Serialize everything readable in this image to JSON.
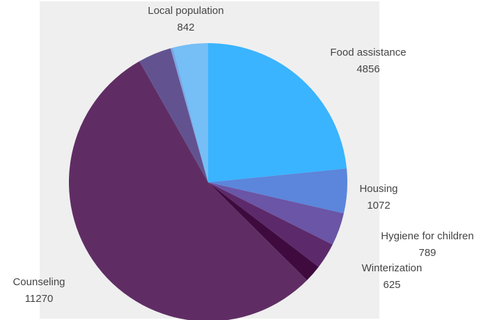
{
  "chart_data": {
    "type": "pie",
    "title": "",
    "slices": [
      {
        "label": "Food assistance",
        "value": 4856,
        "color": "#3ab4ff",
        "label_text": "Food assistance",
        "value_text": "4856"
      },
      {
        "label": "Housing",
        "value": 1072,
        "color": "#5b86dc",
        "label_text": "Housing",
        "value_text": "1072"
      },
      {
        "label": "Hygiene for children",
        "value": 789,
        "color": "#6a55a6",
        "label_text": "Hygiene for children",
        "value_text": "789"
      },
      {
        "label": "Winterization",
        "value": 625,
        "color": "#5c2a6a",
        "label_text": "Winterization",
        "value_text": "625"
      },
      {
        "label": "",
        "value": 420,
        "color": "#3f0b3e",
        "label_text": "",
        "value_text": ""
      },
      {
        "label": "Counseling",
        "value": 11270,
        "color": "#5f2d64",
        "label_text": "Counseling",
        "value_text": "11270"
      },
      {
        "label": "",
        "value": 800,
        "color": "#625390",
        "label_text": "",
        "value_text": ""
      },
      {
        "label": "",
        "value": 60,
        "color": "#7aa6e4",
        "label_text": "",
        "value_text": ""
      },
      {
        "label": "Local population",
        "value": 842,
        "color": "#75bef6",
        "label_text": "Local population",
        "value_text": "842"
      }
    ]
  }
}
